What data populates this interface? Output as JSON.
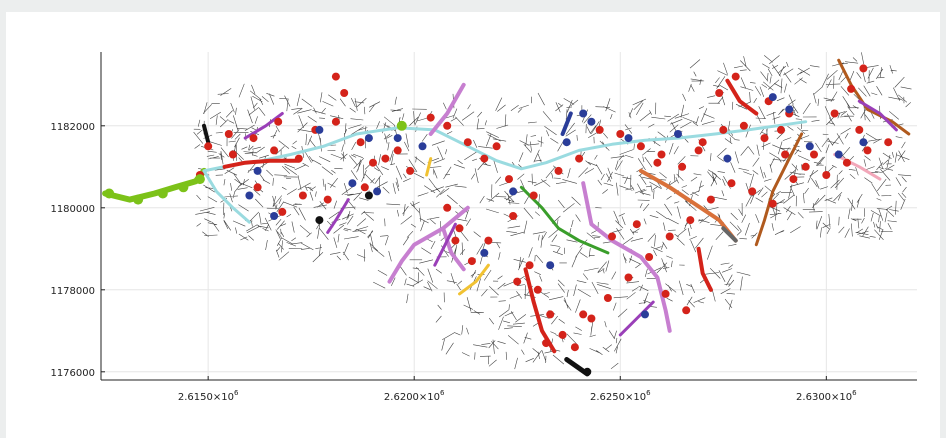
{
  "chart_data": {
    "type": "scatter",
    "title": "",
    "xlabel": "",
    "ylabel": "",
    "xlim": [
      2612400,
      2632200
    ],
    "ylim": [
      1175800,
      1183800
    ],
    "grid": true,
    "legend": "none",
    "x_ticks": [
      {
        "value": 2615000,
        "mantissa": "2.6150",
        "exp": "6"
      },
      {
        "value": 2620000,
        "mantissa": "2.6200",
        "exp": "6"
      },
      {
        "value": 2625000,
        "mantissa": "2.6250",
        "exp": "6"
      },
      {
        "value": 2630000,
        "mantissa": "2.6300",
        "exp": "6"
      }
    ],
    "y_ticks": [
      {
        "value": 1176000,
        "label": "1176000"
      },
      {
        "value": 1178000,
        "label": "1178000"
      },
      {
        "value": 1180000,
        "label": "1180000"
      },
      {
        "value": 1182000,
        "label": "1182000"
      }
    ],
    "colors": {
      "network": "#222222",
      "main_stem": "#9adbe0",
      "outlet": "#7cc219",
      "red": "#d4231a",
      "blue": "#2a3d99",
      "purple": "#9a3fb8",
      "violet": "#c77fd0",
      "green": "#3a9e2b",
      "orange": "#d9713a",
      "brown": "#b05a1e",
      "pink": "#f2a7b9",
      "yellow": "#f1c232",
      "grey": "#666666",
      "black": "#111111"
    },
    "series": [
      {
        "color": "outlet",
        "width": 6,
        "points": [
          [
            2612500,
            1180350
          ],
          [
            2613100,
            1180200
          ],
          [
            2613700,
            1180350
          ],
          [
            2614200,
            1180500
          ],
          [
            2614700,
            1180650
          ],
          [
            2614900,
            1180900
          ]
        ]
      },
      {
        "color": "main_stem",
        "width": 3,
        "points": [
          [
            2614900,
            1180900
          ],
          [
            2615600,
            1181050
          ],
          [
            2616300,
            1181150
          ],
          [
            2617000,
            1181300
          ],
          [
            2617800,
            1181500
          ],
          [
            2618600,
            1181800
          ],
          [
            2619600,
            1181950
          ],
          [
            2620500,
            1181900
          ],
          [
            2621300,
            1181500
          ],
          [
            2622000,
            1181150
          ],
          [
            2622600,
            1180950
          ],
          [
            2623200,
            1181100
          ],
          [
            2624000,
            1181400
          ],
          [
            2624800,
            1181550
          ],
          [
            2625600,
            1181650
          ],
          [
            2626400,
            1181700
          ],
          [
            2627300,
            1181800
          ],
          [
            2628100,
            1181900
          ],
          [
            2628800,
            1182000
          ],
          [
            2629500,
            1182100
          ]
        ]
      },
      {
        "color": "main_stem",
        "width": 3,
        "points": [
          [
            2614900,
            1180900
          ],
          [
            2615200,
            1180400
          ],
          [
            2615600,
            1180000
          ],
          [
            2616000,
            1179650
          ]
        ]
      },
      {
        "color": "violet",
        "width": 4,
        "points": [
          [
            2621300,
            1180000
          ],
          [
            2620700,
            1179500
          ],
          [
            2620000,
            1179100
          ],
          [
            2619700,
            1178700
          ],
          [
            2619400,
            1178200
          ]
        ]
      },
      {
        "color": "violet",
        "width": 4,
        "points": [
          [
            2620700,
            1179500
          ],
          [
            2620900,
            1178900
          ],
          [
            2621200,
            1178500
          ]
        ]
      },
      {
        "color": "violet",
        "width": 4,
        "points": [
          [
            2624100,
            1180600
          ],
          [
            2624300,
            1179600
          ],
          [
            2624800,
            1179200
          ],
          [
            2625500,
            1178800
          ],
          [
            2625900,
            1178300
          ],
          [
            2626100,
            1177500
          ],
          [
            2626200,
            1177000
          ]
        ]
      },
      {
        "color": "violet",
        "width": 4,
        "points": [
          [
            2621200,
            1183000
          ],
          [
            2620800,
            1182300
          ],
          [
            2620400,
            1181800
          ]
        ]
      },
      {
        "color": "green",
        "width": 3,
        "points": [
          [
            2622600,
            1180500
          ],
          [
            2623100,
            1180000
          ],
          [
            2623500,
            1179500
          ],
          [
            2624000,
            1179200
          ],
          [
            2624700,
            1178900
          ]
        ]
      },
      {
        "color": "orange",
        "width": 4,
        "points": [
          [
            2625500,
            1180900
          ],
          [
            2626200,
            1180500
          ],
          [
            2626800,
            1180100
          ],
          [
            2627400,
            1179700
          ],
          [
            2627800,
            1179200
          ]
        ]
      },
      {
        "color": "brown",
        "width": 3,
        "points": [
          [
            2630300,
            1183600
          ],
          [
            2630600,
            1183000
          ],
          [
            2631000,
            1182400
          ],
          [
            2631600,
            1182100
          ],
          [
            2632000,
            1181800
          ]
        ]
      },
      {
        "color": "brown",
        "width": 3,
        "points": [
          [
            2629400,
            1181800
          ],
          [
            2629000,
            1181000
          ],
          [
            2628700,
            1180400
          ],
          [
            2628500,
            1179700
          ],
          [
            2628300,
            1179100
          ]
        ]
      },
      {
        "color": "purple",
        "width": 3,
        "points": [
          [
            2621000,
            1179600
          ],
          [
            2620700,
            1179000
          ],
          [
            2620500,
            1178600
          ]
        ]
      },
      {
        "color": "purple",
        "width": 3,
        "points": [
          [
            2618400,
            1180200
          ],
          [
            2618100,
            1179700
          ],
          [
            2617900,
            1179400
          ]
        ]
      },
      {
        "color": "purple",
        "width": 3,
        "points": [
          [
            2625800,
            1177700
          ],
          [
            2625400,
            1177300
          ],
          [
            2625000,
            1176900
          ]
        ]
      },
      {
        "color": "purple",
        "width": 3,
        "points": [
          [
            2630800,
            1182600
          ],
          [
            2631300,
            1182300
          ],
          [
            2631700,
            1181900
          ]
        ]
      },
      {
        "color": "purple",
        "width": 3,
        "points": [
          [
            2616800,
            1182300
          ],
          [
            2616400,
            1182000
          ],
          [
            2615900,
            1181700
          ]
        ]
      },
      {
        "color": "pink",
        "width": 3,
        "points": [
          [
            2630200,
            1181300
          ],
          [
            2630800,
            1181000
          ],
          [
            2631300,
            1180700
          ]
        ]
      },
      {
        "color": "yellow",
        "width": 3,
        "points": [
          [
            2621800,
            1178600
          ],
          [
            2621500,
            1178200
          ],
          [
            2621100,
            1177900
          ]
        ]
      },
      {
        "color": "yellow",
        "width": 3,
        "points": [
          [
            2620400,
            1181200
          ],
          [
            2620300,
            1180800
          ]
        ]
      },
      {
        "color": "red",
        "width": 4,
        "points": [
          [
            2622700,
            1178500
          ],
          [
            2622900,
            1177700
          ],
          [
            2623100,
            1177000
          ],
          [
            2623400,
            1176500
          ]
        ]
      },
      {
        "color": "red",
        "width": 4,
        "points": [
          [
            2615400,
            1181000
          ],
          [
            2615900,
            1181100
          ],
          [
            2616500,
            1181150
          ],
          [
            2617200,
            1181150
          ]
        ]
      },
      {
        "color": "red",
        "width": 4,
        "points": [
          [
            2627600,
            1183100
          ],
          [
            2627900,
            1182600
          ],
          [
            2628300,
            1182300
          ]
        ]
      },
      {
        "color": "red",
        "width": 4,
        "points": [
          [
            2626900,
            1179000
          ],
          [
            2627000,
            1178400
          ],
          [
            2627200,
            1178000
          ]
        ]
      },
      {
        "color": "black",
        "width": 5,
        "points": [
          [
            2623700,
            1176300
          ],
          [
            2624200,
            1175950
          ]
        ]
      },
      {
        "color": "black",
        "width": 4,
        "points": [
          [
            2614900,
            1182000
          ],
          [
            2615000,
            1181600
          ]
        ]
      },
      {
        "color": "grey",
        "width": 4,
        "points": [
          [
            2627500,
            1179500
          ],
          [
            2627800,
            1179200
          ]
        ]
      },
      {
        "color": "blue",
        "width": 4,
        "points": [
          [
            2623800,
            1182300
          ],
          [
            2623600,
            1181800
          ]
        ]
      }
    ],
    "markers": [
      {
        "color": "red",
        "points": [
          [
            2615000,
            1181500
          ],
          [
            2615600,
            1181300
          ],
          [
            2616100,
            1181700
          ],
          [
            2616600,
            1181400
          ],
          [
            2617200,
            1181200
          ],
          [
            2617600,
            1181900
          ],
          [
            2618100,
            1182100
          ],
          [
            2618700,
            1181600
          ],
          [
            2619300,
            1181200
          ],
          [
            2619900,
            1180900
          ],
          [
            2620400,
            1182200
          ],
          [
            2620800,
            1182000
          ],
          [
            2621300,
            1181600
          ],
          [
            2621700,
            1181200
          ],
          [
            2622300,
            1180700
          ],
          [
            2622900,
            1180300
          ],
          [
            2623500,
            1180900
          ],
          [
            2624000,
            1181200
          ],
          [
            2624500,
            1181900
          ],
          [
            2625000,
            1181800
          ],
          [
            2625500,
            1181500
          ],
          [
            2626000,
            1181300
          ],
          [
            2626500,
            1181000
          ],
          [
            2627000,
            1181600
          ],
          [
            2627500,
            1181900
          ],
          [
            2628000,
            1182000
          ],
          [
            2628500,
            1181700
          ],
          [
            2629000,
            1181300
          ],
          [
            2629500,
            1181000
          ],
          [
            2630000,
            1180800
          ],
          [
            2630500,
            1181100
          ],
          [
            2631000,
            1181400
          ],
          [
            2631500,
            1181600
          ],
          [
            2616200,
            1180500
          ],
          [
            2616800,
            1179900
          ],
          [
            2617300,
            1180300
          ],
          [
            2618800,
            1180500
          ],
          [
            2620800,
            1180000
          ],
          [
            2621100,
            1179500
          ],
          [
            2621400,
            1178700
          ],
          [
            2621800,
            1179200
          ],
          [
            2622400,
            1179800
          ],
          [
            2622800,
            1178600
          ],
          [
            2623000,
            1178000
          ],
          [
            2623300,
            1177400
          ],
          [
            2623600,
            1176900
          ],
          [
            2623900,
            1176600
          ],
          [
            2624300,
            1177300
          ],
          [
            2624700,
            1177800
          ],
          [
            2625200,
            1178300
          ],
          [
            2625700,
            1178800
          ],
          [
            2626200,
            1179300
          ],
          [
            2626700,
            1179700
          ],
          [
            2627200,
            1180200
          ],
          [
            2627700,
            1180600
          ],
          [
            2628200,
            1180400
          ],
          [
            2628700,
            1180100
          ],
          [
            2629200,
            1180700
          ],
          [
            2629700,
            1181300
          ],
          [
            2630200,
            1182300
          ],
          [
            2630600,
            1182900
          ],
          [
            2630900,
            1183400
          ],
          [
            2627400,
            1182800
          ],
          [
            2627800,
            1183200
          ],
          [
            2628600,
            1182600
          ],
          [
            2629100,
            1182300
          ],
          [
            2618300,
            1182800
          ],
          [
            2618100,
            1183200
          ],
          [
            2626100,
            1177900
          ],
          [
            2626600,
            1177500
          ],
          [
            2623200,
            1176700
          ],
          [
            2624100,
            1177400
          ],
          [
            2625900,
            1181100
          ],
          [
            2622000,
            1181500
          ],
          [
            2619600,
            1181400
          ],
          [
            2617900,
            1180200
          ],
          [
            2614800,
            1180800
          ],
          [
            2615500,
            1181800
          ],
          [
            2616700,
            1182100
          ],
          [
            2619000,
            1181100
          ],
          [
            2621000,
            1179200
          ],
          [
            2622500,
            1178200
          ],
          [
            2624800,
            1179300
          ],
          [
            2625400,
            1179600
          ],
          [
            2626900,
            1181400
          ],
          [
            2628900,
            1181900
          ],
          [
            2630800,
            1181900
          ]
        ]
      },
      {
        "color": "blue",
        "points": [
          [
            2616000,
            1180300
          ],
          [
            2616600,
            1179800
          ],
          [
            2617700,
            1181900
          ],
          [
            2618500,
            1180600
          ],
          [
            2619100,
            1180400
          ],
          [
            2619600,
            1181700
          ],
          [
            2620200,
            1181500
          ],
          [
            2622400,
            1180400
          ],
          [
            2623700,
            1181600
          ],
          [
            2624100,
            1182300
          ],
          [
            2624300,
            1182100
          ],
          [
            2625200,
            1181700
          ],
          [
            2626400,
            1181800
          ],
          [
            2628700,
            1182700
          ],
          [
            2629100,
            1182400
          ],
          [
            2629600,
            1181500
          ],
          [
            2630300,
            1181300
          ],
          [
            2630900,
            1181600
          ],
          [
            2616200,
            1180900
          ],
          [
            2618900,
            1181700
          ],
          [
            2621700,
            1178900
          ],
          [
            2627600,
            1181200
          ],
          [
            2625600,
            1177400
          ],
          [
            2623300,
            1178600
          ]
        ]
      },
      {
        "color": "outlet",
        "points": [
          [
            2612600,
            1180350
          ],
          [
            2613300,
            1180200
          ],
          [
            2613900,
            1180350
          ],
          [
            2614400,
            1180500
          ],
          [
            2614800,
            1180700
          ],
          [
            2619700,
            1182000
          ]
        ]
      },
      {
        "color": "black",
        "points": [
          [
            2617700,
            1179700
          ],
          [
            2624200,
            1176000
          ],
          [
            2618900,
            1180300
          ]
        ]
      }
    ],
    "network_twigs": 1400
  }
}
